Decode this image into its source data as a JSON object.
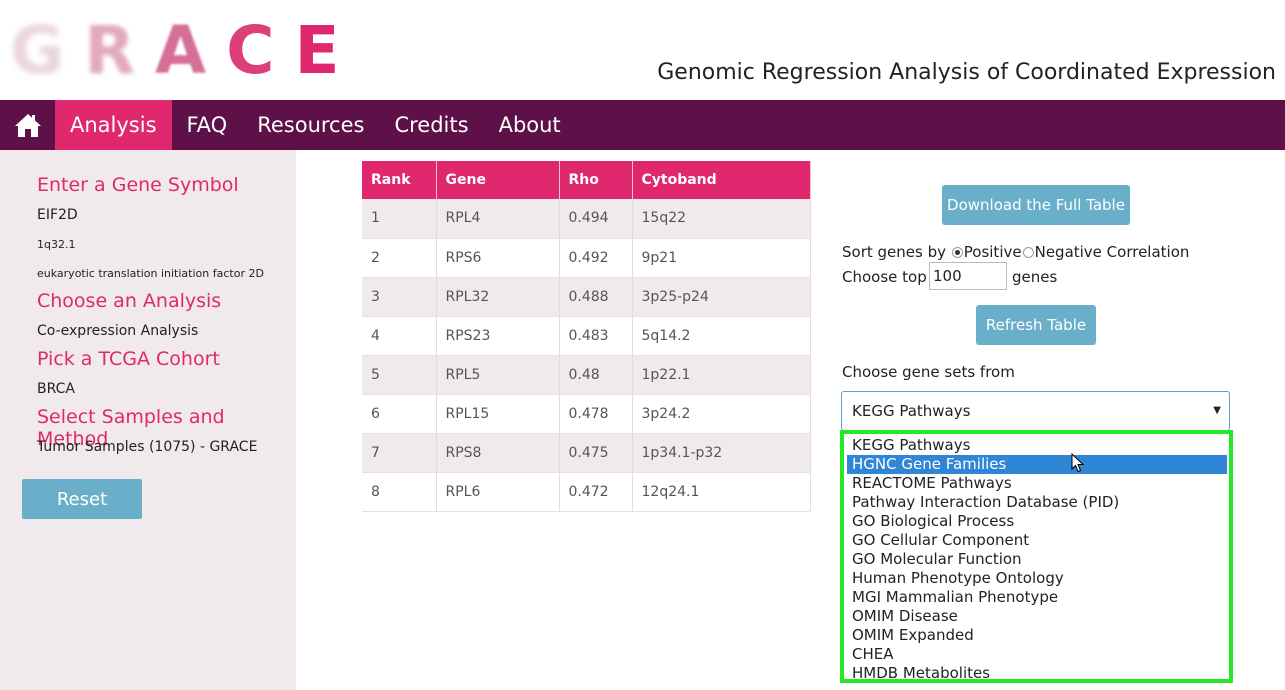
{
  "header": {
    "logo_letters": [
      "G",
      "R",
      "A",
      "C",
      "E"
    ],
    "tagline": "Genomic Regression Analysis of Coordinated Expression"
  },
  "nav": {
    "items": [
      {
        "label": "Analysis",
        "active": true
      },
      {
        "label": "FAQ",
        "active": false
      },
      {
        "label": "Resources",
        "active": false
      },
      {
        "label": "Credits",
        "active": false
      },
      {
        "label": "About",
        "active": false
      }
    ]
  },
  "sidebar": {
    "gene_heading": "Enter a Gene Symbol",
    "gene_symbol": "EIF2D",
    "gene_location": "1q32.1",
    "gene_description": "eukaryotic translation initiation factor 2D",
    "analysis_heading": "Choose an Analysis",
    "analysis_value": "Co-expression Analysis",
    "cohort_heading": "Pick a TCGA Cohort",
    "cohort_value": "BRCA",
    "samples_heading": "Select Samples and Method",
    "samples_value": "Tumor Samples (1075) - GRACE",
    "reset_label": "Reset"
  },
  "table": {
    "headers": [
      "Rank",
      "Gene",
      "Rho",
      "Cytoband"
    ],
    "rows": [
      [
        "1",
        "RPL4",
        "0.494",
        "15q22"
      ],
      [
        "2",
        "RPS6",
        "0.492",
        "9p21"
      ],
      [
        "3",
        "RPL32",
        "0.488",
        "3p25-p24"
      ],
      [
        "4",
        "RPS23",
        "0.483",
        "5q14.2"
      ],
      [
        "5",
        "RPL5",
        "0.48",
        "1p22.1"
      ],
      [
        "6",
        "RPL15",
        "0.478",
        "3p24.2"
      ],
      [
        "7",
        "RPS8",
        "0.475",
        "1p34.1-p32"
      ],
      [
        "8",
        "RPL6",
        "0.472",
        "12q24.1"
      ]
    ]
  },
  "controls": {
    "download_label": "Download the Full Table",
    "sort_label": "Sort genes by",
    "sort_positive": "Positive",
    "sort_negative": "Negative Correlation",
    "choose_top_label": "Choose top",
    "top_value": "100",
    "genes_label": "genes",
    "refresh_label": "Refresh Table",
    "gene_sets_label": "Choose gene sets from",
    "gene_sets_selected": "KEGG Pathways",
    "gene_sets_options": [
      "KEGG Pathways",
      "HGNC Gene Families",
      "REACTOME Pathways",
      "Pathway Interaction Database (PID)",
      "GO Biological Process",
      "GO Cellular Component",
      "GO Molecular Function",
      "Human Phenotype Ontology",
      "MGI Mammalian Phenotype",
      "OMIM Disease",
      "OMIM Expanded",
      "CHEA",
      "HMDB Metabolites"
    ],
    "highlighted_option": 1
  },
  "colors": {
    "nav_bg": "#5e1049",
    "accent": "#e0286f",
    "button": "#6aafc9",
    "dropdown_outline": "#27e827",
    "option_highlight": "#2f85d6"
  }
}
